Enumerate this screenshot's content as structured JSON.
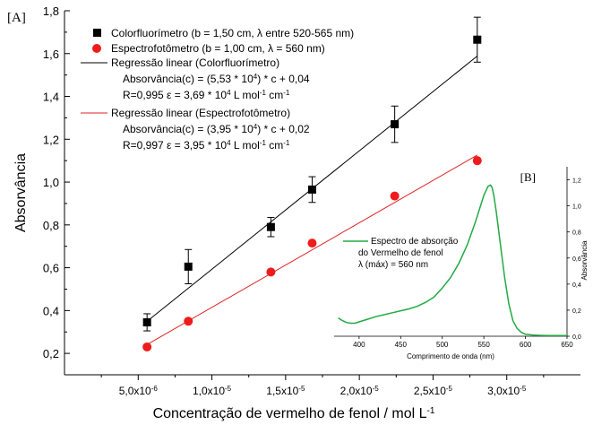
{
  "chart_data": [
    {
      "panel": "[A]",
      "type": "scatter",
      "xlabel": "Concentração de vermelho de fenol / mol L",
      "xlabel_sup": "-1",
      "ylabel": "Absorvância",
      "xlim": [
        0,
        3.5e-05
      ],
      "ylim": [
        0.1,
        1.8
      ],
      "x_ticks": [
        {
          "value": 5e-06,
          "m": "5,0x10",
          "e": "-6"
        },
        {
          "value": 1e-05,
          "m": "1,0x10",
          "e": "-5"
        },
        {
          "value": 1.5e-05,
          "m": "1,5x10",
          "e": "-5"
        },
        {
          "value": 2e-05,
          "m": "2,0x10",
          "e": "-5"
        },
        {
          "value": 2.5e-05,
          "m": "2,5x10",
          "e": "-5"
        },
        {
          "value": 3e-05,
          "m": "3,0x10",
          "e": "-5"
        }
      ],
      "y_ticks": [
        {
          "value": 0.2,
          "label": "0,2"
        },
        {
          "value": 0.4,
          "label": "0,4"
        },
        {
          "value": 0.6,
          "label": "0,6"
        },
        {
          "value": 0.8,
          "label": "0,8"
        },
        {
          "value": 1.0,
          "label": "1,0"
        },
        {
          "value": 1.2,
          "label": "1,2"
        },
        {
          "value": 1.4,
          "label": "1,4"
        },
        {
          "value": 1.6,
          "label": "1,6"
        },
        {
          "value": 1.8,
          "label": "1,8"
        }
      ],
      "series": [
        {
          "name": "Colorfluorímetro (b = 1,50 cm, λ entre 520-565 nm)",
          "marker": "square",
          "color": "#000000",
          "x": [
            5.6e-06,
            8.4e-06,
            1.4e-05,
            1.68e-05,
            2.24e-05,
            2.8e-05
          ],
          "y": [
            0.345,
            0.605,
            0.79,
            0.965,
            1.27,
            1.665
          ],
          "yerr": [
            0.04,
            0.08,
            0.045,
            0.06,
            0.085,
            0.105
          ]
        },
        {
          "name": "Espectrofotômetro (b = 1,00 cm, λ = 560 nm)",
          "marker": "circle",
          "color": "#ee1c1c",
          "x": [
            5.6e-06,
            8.4e-06,
            1.4e-05,
            1.68e-05,
            2.24e-05,
            2.8e-05
          ],
          "y": [
            0.23,
            0.35,
            0.58,
            0.715,
            0.935,
            1.1
          ]
        }
      ],
      "fits": [
        {
          "name": "Regressão linear (Colorfluorímetro)",
          "color": "#000000",
          "slope": 55300,
          "intercept": 0.04,
          "x_range": [
            5.6e-06,
            2.8e-05
          ],
          "equation": {
            "pre": "Absorvância(c) = (5,53 * 10",
            "sup": "4",
            "post": ") * c + 0,04"
          },
          "stats": {
            "pre": "R=0,995   ε = 3,69 * 10",
            "sup1": "4",
            "mid": " L mol",
            "sup2": "-1",
            "mid2": " cm",
            "sup3": "-1"
          }
        },
        {
          "name": "Regressão linear (Espectrofotômetro)",
          "color": "#e02020",
          "slope": 39500,
          "intercept": 0.02,
          "x_range": [
            5.6e-06,
            2.8e-05
          ],
          "equation": {
            "pre": "Absorvância(c) = (3,95 * 10",
            "sup": "4",
            "post": ") * c +  0,02"
          },
          "stats": {
            "pre": "R=0,997   ε = 3,95 * 10",
            "sup1": "4",
            "mid": " L mol",
            "sup2": "-1",
            "mid2": " cm",
            "sup3": "-1"
          }
        }
      ],
      "legend_placement": "top-left",
      "grid": false
    },
    {
      "panel": "[B]",
      "type": "line",
      "xlabel": "Comprimento de onda (nm)",
      "ylabel": "Absorvância",
      "xlim": [
        370,
        650
      ],
      "ylim": [
        0,
        1.3
      ],
      "y_axis_side": "right",
      "x_ticks": [
        400,
        450,
        500,
        550,
        600,
        650
      ],
      "y_ticks": [
        {
          "value": 0.0,
          "label": "0,0"
        },
        {
          "value": 0.2,
          "label": "0,2"
        },
        {
          "value": 0.4,
          "label": "0,4"
        },
        {
          "value": 0.6,
          "label": "0,6"
        },
        {
          "value": 0.8,
          "label": "0,8"
        },
        {
          "value": 1.0,
          "label": "1,0"
        },
        {
          "value": 1.2,
          "label": "1,2"
        }
      ],
      "series": [
        {
          "name": "Espectro de absorção do Vermelho de fenol λ (máx) = 560 nm",
          "legend_lines": [
            "Espectro de absorção",
            "do Vermelho de fenol",
            "λ (máx) = 560 nm"
          ],
          "color": "#22aa44",
          "x": [
            375,
            380,
            385,
            390,
            395,
            400,
            410,
            420,
            430,
            440,
            450,
            460,
            470,
            480,
            490,
            500,
            510,
            520,
            530,
            540,
            545,
            550,
            555,
            558,
            560,
            562,
            565,
            570,
            575,
            580,
            585,
            590,
            595,
            600,
            610,
            620,
            630,
            640,
            650
          ],
          "y": [
            0.14,
            0.12,
            0.105,
            0.1,
            0.1,
            0.11,
            0.13,
            0.15,
            0.165,
            0.18,
            0.195,
            0.21,
            0.23,
            0.26,
            0.3,
            0.37,
            0.45,
            0.56,
            0.7,
            0.88,
            0.98,
            1.08,
            1.15,
            1.16,
            1.14,
            1.08,
            0.95,
            0.7,
            0.45,
            0.25,
            0.12,
            0.06,
            0.03,
            0.015,
            0.008,
            0.006,
            0.005,
            0.005,
            0.005
          ]
        }
      ],
      "legend_placement": "left"
    }
  ]
}
